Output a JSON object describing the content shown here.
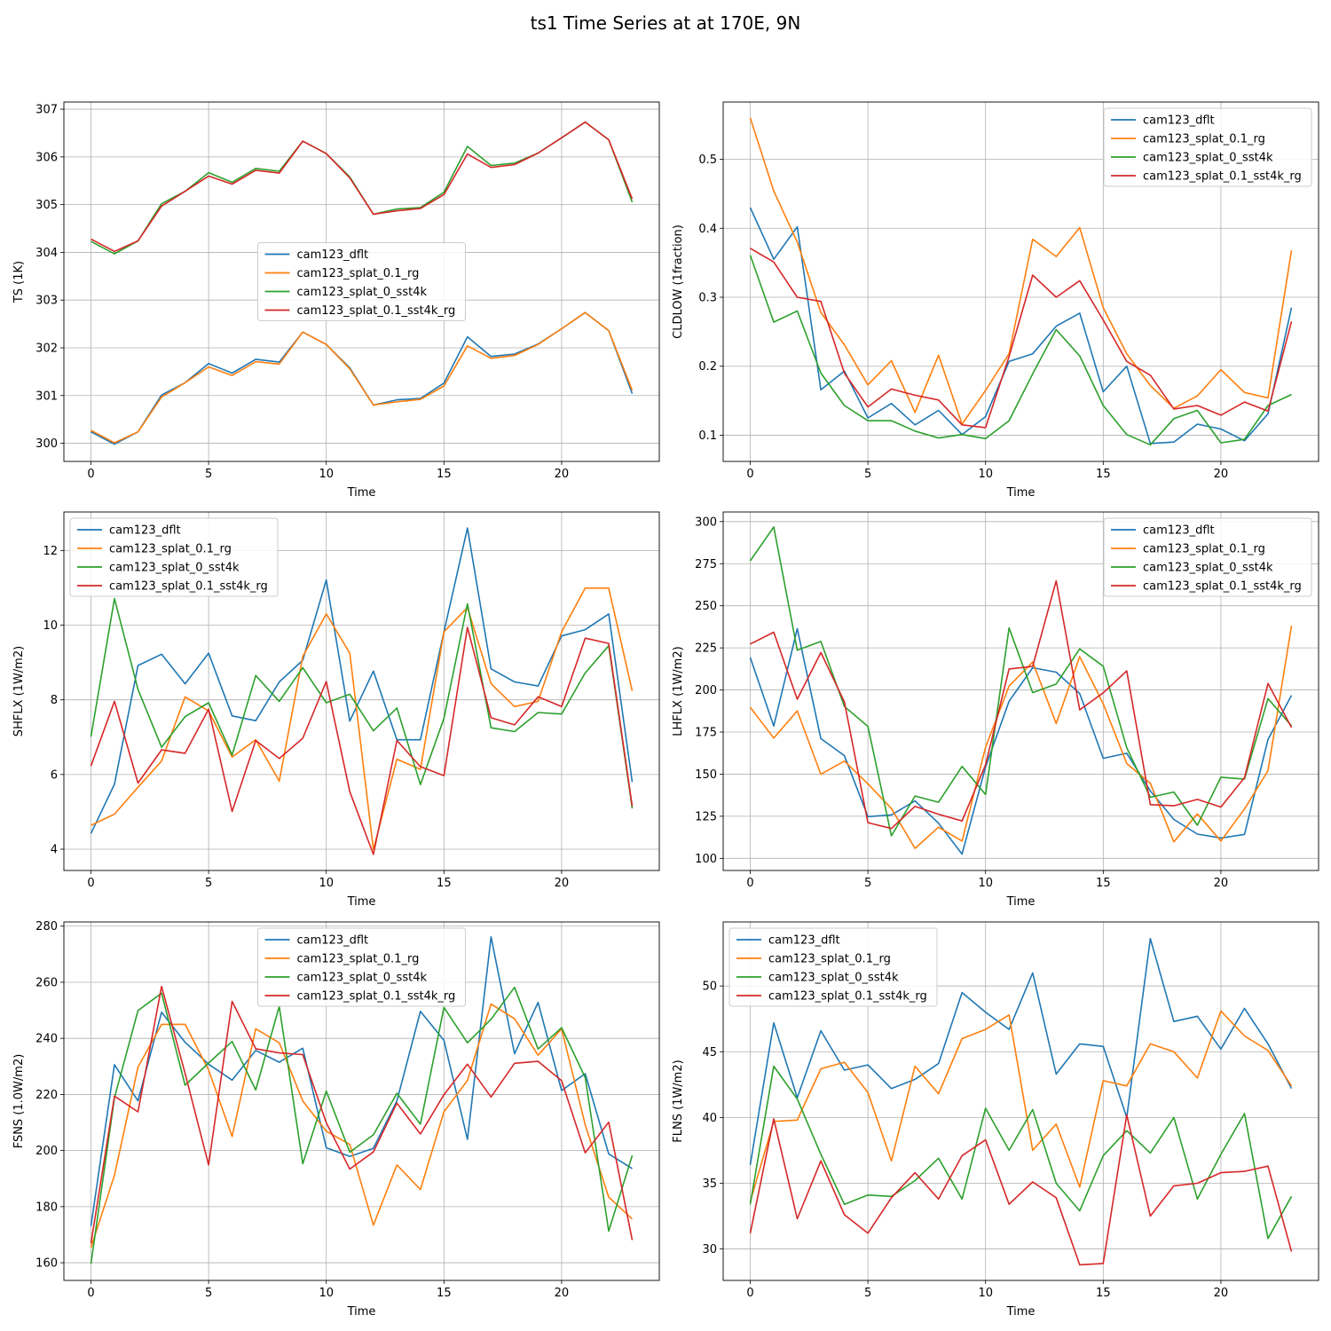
{
  "figure": {
    "title": "ts1 Time Series at at 170E, 9N"
  },
  "colors": {
    "cam123_dflt": "#1f77b4",
    "cam123_splat_0.1_rg": "#ff7f0e",
    "cam123_splat_0_sst4k": "#2ca02c",
    "cam123_splat_0.1_sst4k_rg": "#d62728",
    "grid": "#b0b0b0"
  },
  "chart_data": [
    {
      "type": "line",
      "id": "ts",
      "xlabel": "Time",
      "ylabel": "TS (1K)",
      "xlim": [
        -1.15,
        24.15
      ],
      "ylim": [
        299.62,
        307.15
      ],
      "xticks": [
        0,
        5,
        10,
        15,
        20
      ],
      "yticks": [
        300,
        301,
        302,
        303,
        304,
        305,
        306,
        307
      ],
      "ytick_labels": [
        "300",
        "301",
        "302",
        "303",
        "304",
        "305",
        "306",
        "307"
      ],
      "legend": "center",
      "x": [
        0,
        1,
        2,
        3,
        4,
        5,
        6,
        7,
        8,
        9,
        10,
        11,
        12,
        13,
        14,
        15,
        16,
        17,
        18,
        19,
        20,
        21,
        22,
        23
      ],
      "series": [
        {
          "name": "cam123_dflt",
          "values": [
            300.24,
            299.98,
            300.24,
            301.01,
            301.27,
            301.67,
            301.47,
            301.76,
            301.7,
            302.33,
            302.07,
            301.58,
            300.8,
            300.91,
            300.94,
            301.26,
            302.23,
            301.82,
            301.87,
            302.08,
            302.4,
            302.74,
            302.36,
            301.04
          ]
        },
        {
          "name": "cam123_splat_0.1_rg",
          "values": [
            300.27,
            300.01,
            300.24,
            300.97,
            301.27,
            301.6,
            301.42,
            301.71,
            301.66,
            302.33,
            302.07,
            301.56,
            300.8,
            300.87,
            300.92,
            301.2,
            302.04,
            301.78,
            301.84,
            302.07,
            302.4,
            302.74,
            302.36,
            301.11
          ]
        },
        {
          "name": "cam123_splat_0_sst4k",
          "values": [
            304.23,
            303.97,
            304.24,
            305.02,
            305.28,
            305.67,
            305.47,
            305.76,
            305.7,
            306.33,
            306.07,
            305.58,
            304.8,
            304.91,
            304.94,
            305.26,
            306.22,
            305.82,
            305.87,
            306.08,
            306.4,
            306.73,
            306.36,
            305.05
          ]
        },
        {
          "name": "cam123_splat_0.1_sst4k_rg",
          "values": [
            304.28,
            304.02,
            304.24,
            304.97,
            305.28,
            305.6,
            305.43,
            305.72,
            305.66,
            306.33,
            306.07,
            305.56,
            304.8,
            304.87,
            304.92,
            305.21,
            306.06,
            305.78,
            305.84,
            306.08,
            306.4,
            306.73,
            306.36,
            305.12
          ]
        }
      ]
    },
    {
      "type": "line",
      "id": "cldlow",
      "xlabel": "Time",
      "ylabel": "CLDLOW (1fraction)",
      "xlim": [
        -1.15,
        24.15
      ],
      "ylim": [
        0.062,
        0.583
      ],
      "xticks": [
        0,
        5,
        10,
        15,
        20
      ],
      "yticks": [
        0.1,
        0.2,
        0.3,
        0.4,
        0.5
      ],
      "ytick_labels": [
        "0.1",
        "0.2",
        "0.3",
        "0.4",
        "0.5"
      ],
      "legend": "upper right",
      "x": [
        0,
        1,
        2,
        3,
        4,
        5,
        6,
        7,
        8,
        9,
        10,
        11,
        12,
        13,
        14,
        15,
        16,
        17,
        18,
        19,
        20,
        21,
        22,
        23
      ],
      "series": [
        {
          "name": "cam123_dflt",
          "values": [
            0.43,
            0.355,
            0.402,
            0.166,
            0.193,
            0.125,
            0.146,
            0.115,
            0.136,
            0.101,
            0.127,
            0.207,
            0.218,
            0.258,
            0.277,
            0.163,
            0.2,
            0.088,
            0.09,
            0.116,
            0.109,
            0.092,
            0.131,
            0.285
          ]
        },
        {
          "name": "cam123_splat_0.1_rg",
          "values": [
            0.56,
            0.454,
            0.38,
            0.278,
            0.231,
            0.173,
            0.208,
            0.133,
            0.216,
            0.116,
            0.165,
            0.218,
            0.384,
            0.359,
            0.401,
            0.285,
            0.218,
            0.172,
            0.139,
            0.157,
            0.195,
            0.162,
            0.154,
            0.368
          ]
        },
        {
          "name": "cam123_splat_0_sst4k",
          "values": [
            0.361,
            0.264,
            0.28,
            0.19,
            0.143,
            0.121,
            0.121,
            0.106,
            0.096,
            0.101,
            0.095,
            0.121,
            0.189,
            0.253,
            0.215,
            0.143,
            0.101,
            0.086,
            0.124,
            0.136,
            0.089,
            0.094,
            0.143,
            0.159
          ]
        },
        {
          "name": "cam123_splat_0.1_sst4k_rg",
          "values": [
            0.371,
            0.351,
            0.3,
            0.294,
            0.19,
            0.141,
            0.167,
            0.158,
            0.151,
            0.115,
            0.111,
            0.214,
            0.332,
            0.3,
            0.324,
            0.267,
            0.207,
            0.187,
            0.138,
            0.143,
            0.129,
            0.148,
            0.135,
            0.265
          ]
        }
      ]
    },
    {
      "type": "line",
      "id": "shflx",
      "xlabel": "Time",
      "ylabel": "SHFLX (1W/m2)",
      "xlim": [
        -1.15,
        24.15
      ],
      "ylim": [
        3.43,
        13.03
      ],
      "xticks": [
        0,
        5,
        10,
        15,
        20
      ],
      "yticks": [
        4,
        6,
        8,
        10,
        12
      ],
      "ytick_labels": [
        "4",
        "6",
        "8",
        "10",
        "12"
      ],
      "legend": "upper left",
      "x": [
        0,
        1,
        2,
        3,
        4,
        5,
        6,
        7,
        8,
        9,
        10,
        11,
        12,
        13,
        14,
        15,
        16,
        17,
        18,
        19,
        20,
        21,
        22,
        23
      ],
      "series": [
        {
          "name": "cam123_dflt",
          "values": [
            4.42,
            5.74,
            8.92,
            9.22,
            8.43,
            9.25,
            7.57,
            7.44,
            8.48,
            9.06,
            11.21,
            7.43,
            8.77,
            6.93,
            6.93,
            9.82,
            12.6,
            8.83,
            8.48,
            8.37,
            9.71,
            9.88,
            10.3,
            5.8
          ]
        },
        {
          "name": "cam123_splat_0.1_rg",
          "values": [
            4.64,
            4.94,
            5.66,
            6.36,
            8.08,
            7.7,
            6.47,
            6.93,
            5.82,
            9.16,
            10.3,
            9.25,
            3.99,
            6.41,
            6.14,
            9.82,
            10.47,
            8.43,
            7.82,
            7.96,
            9.82,
            10.99,
            10.99,
            8.24
          ]
        },
        {
          "name": "cam123_splat_0_sst4k",
          "values": [
            7.01,
            10.71,
            8.28,
            6.73,
            7.55,
            7.92,
            6.52,
            8.65,
            7.96,
            8.86,
            7.92,
            8.15,
            7.17,
            7.78,
            5.73,
            7.5,
            10.57,
            7.25,
            7.15,
            7.66,
            7.62,
            8.72,
            9.45,
            5.09
          ]
        },
        {
          "name": "cam123_splat_0.1_sst4k_rg",
          "values": [
            6.23,
            7.96,
            5.77,
            6.66,
            6.57,
            7.75,
            5.01,
            6.91,
            6.43,
            6.97,
            8.49,
            5.54,
            3.86,
            6.91,
            6.21,
            5.97,
            9.94,
            7.52,
            7.33,
            8.08,
            7.82,
            9.65,
            9.51,
            5.15
          ]
        }
      ]
    },
    {
      "type": "line",
      "id": "lhflx",
      "xlabel": "Time",
      "ylabel": "LHFLX (1W/m2)",
      "xlim": [
        -1.15,
        24.15
      ],
      "ylim": [
        92.8,
        305.7
      ],
      "xticks": [
        0,
        5,
        10,
        15,
        20
      ],
      "yticks": [
        100,
        125,
        150,
        175,
        200,
        225,
        250,
        275,
        300
      ],
      "ytick_labels": [
        "100",
        "125",
        "150",
        "175",
        "200",
        "225",
        "250",
        "275",
        "300"
      ],
      "legend": "upper right",
      "x": [
        0,
        1,
        2,
        3,
        4,
        5,
        6,
        7,
        8,
        9,
        10,
        11,
        12,
        13,
        14,
        15,
        16,
        17,
        18,
        19,
        20,
        21,
        22,
        23
      ],
      "series": [
        {
          "name": "cam123_dflt",
          "values": [
            219.3,
            178.6,
            236.4,
            171.1,
            161.0,
            124.8,
            125.8,
            134.1,
            120.9,
            102.5,
            154.3,
            193.3,
            213.2,
            210.6,
            197.9,
            159.4,
            162.4,
            140.0,
            123.1,
            114.4,
            112.1,
            114.2,
            170.6,
            196.8
          ]
        },
        {
          "name": "cam123_splat_0.1_rg",
          "values": [
            189.7,
            171.4,
            187.6,
            149.9,
            157.8,
            144.3,
            129.6,
            105.9,
            118.5,
            110.3,
            166.0,
            202.3,
            216.6,
            180.1,
            219.8,
            191.8,
            156.3,
            144.6,
            109.8,
            126.4,
            110.3,
            129.3,
            152.1,
            238.2
          ]
        },
        {
          "name": "cam123_splat_0_sst4k",
          "values": [
            276.7,
            296.8,
            223.6,
            228.8,
            190.2,
            178.4,
            113.4,
            137.0,
            133.3,
            154.6,
            137.9,
            236.9,
            198.4,
            203.5,
            224.4,
            214.1,
            165.7,
            136.3,
            139.4,
            119.7,
            148.2,
            147.1,
            194.9,
            178.7
          ]
        },
        {
          "name": "cam123_splat_0.1_sst4k_rg",
          "values": [
            227.3,
            234.3,
            194.5,
            222.2,
            192.9,
            121.2,
            117.7,
            130.9,
            126.2,
            122.2,
            155.6,
            212.5,
            214.0,
            264.8,
            188.2,
            198.3,
            211.3,
            131.9,
            131.2,
            135.0,
            130.5,
            147.9,
            203.9,
            177.7
          ]
        }
      ]
    },
    {
      "type": "line",
      "id": "fsns",
      "xlabel": "Time",
      "ylabel": "FSNS (1.0W/m2)",
      "xlim": [
        -1.15,
        24.15
      ],
      "ylim": [
        153.7,
        281.5
      ],
      "xticks": [
        0,
        5,
        10,
        15,
        20
      ],
      "yticks": [
        160,
        180,
        200,
        220,
        240,
        260,
        280
      ],
      "ytick_labels": [
        "160",
        "180",
        "200",
        "220",
        "240",
        "260",
        "280"
      ],
      "legend": "upper center",
      "x": [
        0,
        1,
        2,
        3,
        4,
        5,
        6,
        7,
        8,
        9,
        10,
        11,
        12,
        13,
        14,
        15,
        16,
        17,
        18,
        19,
        20,
        21,
        22,
        23
      ],
      "series": [
        {
          "name": "cam123_dflt",
          "values": [
            173.1,
            230.6,
            217.7,
            249.3,
            238.6,
            230.8,
            225.1,
            235.7,
            231.5,
            236.5,
            201.0,
            197.9,
            200.8,
            217.7,
            249.6,
            239.3,
            204.0,
            276.2,
            234.5,
            252.8,
            221.4,
            227.4,
            198.8,
            193.6
          ]
        },
        {
          "name": "cam123_splat_0.1_rg",
          "values": [
            165.4,
            191.2,
            229.7,
            245.0,
            245.0,
            228.7,
            205.0,
            243.4,
            238.4,
            217.7,
            206.9,
            202.2,
            173.4,
            194.9,
            186.1,
            213.8,
            225.0,
            252.2,
            247.0,
            234.0,
            243.4,
            209.2,
            183.4,
            175.6
          ]
        },
        {
          "name": "cam123_splat_0_sst4k",
          "values": [
            159.6,
            218.8,
            249.9,
            256.1,
            223.3,
            231.2,
            238.9,
            221.6,
            251.4,
            195.3,
            221.2,
            199.4,
            205.6,
            220.4,
            209.4,
            251.0,
            238.4,
            246.8,
            258.2,
            236.2,
            243.8,
            226.0,
            171.3,
            198.2
          ]
        },
        {
          "name": "cam123_splat_0.1_sst4k_rg",
          "values": [
            166.9,
            219.4,
            213.8,
            258.5,
            227.5,
            194.9,
            253.2,
            236.3,
            234.8,
            234.2,
            209.9,
            193.4,
            199.5,
            216.9,
            205.9,
            219.9,
            230.8,
            219.1,
            231.1,
            231.8,
            224.9,
            199.2,
            210.1,
            168.1
          ]
        }
      ]
    },
    {
      "type": "line",
      "id": "flns",
      "xlabel": "Time",
      "ylabel": "FLNS (1W/m2)",
      "xlim": [
        -1.15,
        24.15
      ],
      "ylim": [
        27.61,
        54.87
      ],
      "xticks": [
        0,
        5,
        10,
        15,
        20
      ],
      "yticks": [
        30,
        35,
        40,
        45,
        50
      ],
      "ytick_labels": [
        "30",
        "35",
        "40",
        "45",
        "50"
      ],
      "legend": "upper left",
      "x": [
        0,
        1,
        2,
        3,
        4,
        5,
        6,
        7,
        8,
        9,
        10,
        11,
        12,
        13,
        14,
        15,
        16,
        17,
        18,
        19,
        20,
        21,
        22,
        23
      ],
      "series": [
        {
          "name": "cam123_dflt",
          "values": [
            36.4,
            47.2,
            41.5,
            46.6,
            43.6,
            44.0,
            42.2,
            42.9,
            44.1,
            49.5,
            48.0,
            46.7,
            51.0,
            43.3,
            45.6,
            45.4,
            40.0,
            53.6,
            47.3,
            47.7,
            45.2,
            48.3,
            45.6,
            42.2
          ]
        },
        {
          "name": "cam123_splat_0.1_rg",
          "values": [
            33.6,
            39.7,
            39.8,
            43.7,
            44.2,
            41.9,
            36.7,
            43.9,
            41.8,
            46.0,
            46.7,
            47.8,
            37.5,
            39.5,
            34.7,
            42.8,
            42.4,
            45.6,
            45.0,
            43.0,
            48.1,
            46.2,
            45.1,
            42.4
          ]
        },
        {
          "name": "cam123_splat_0_sst4k",
          "values": [
            33.4,
            43.9,
            41.4,
            37.2,
            33.4,
            34.1,
            34.0,
            35.2,
            36.9,
            33.8,
            40.7,
            37.5,
            40.6,
            35.0,
            32.9,
            37.1,
            39.0,
            37.3,
            40.0,
            33.8,
            37.2,
            40.3,
            30.8,
            34.0
          ]
        },
        {
          "name": "cam123_splat_0.1_sst4k_rg",
          "values": [
            31.2,
            39.9,
            32.3,
            36.7,
            32.6,
            31.2,
            33.9,
            35.8,
            33.8,
            37.1,
            38.3,
            33.4,
            35.1,
            33.9,
            28.8,
            28.9,
            40.2,
            32.5,
            34.8,
            35.0,
            35.8,
            35.9,
            36.3,
            29.8
          ]
        }
      ]
    }
  ]
}
